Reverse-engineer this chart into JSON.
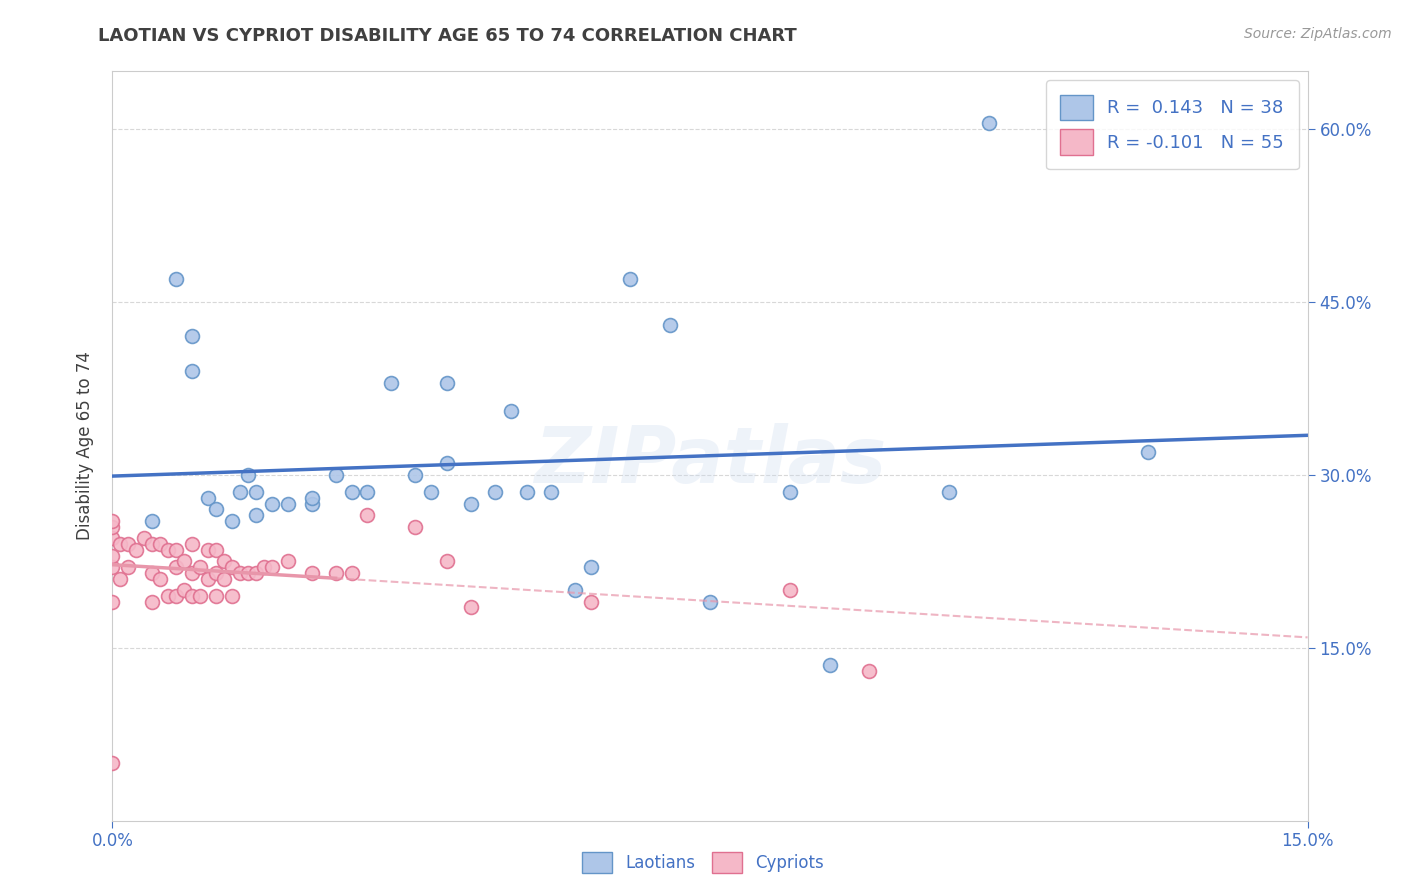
{
  "title": "LAOTIAN VS CYPRIOT DISABILITY AGE 65 TO 74 CORRELATION CHART",
  "source": "Source: ZipAtlas.com",
  "ylabel": "Disability Age 65 to 74",
  "xlim": [
    0.0,
    0.15
  ],
  "ylim": [
    0.0,
    0.65
  ],
  "xticks": [
    0.0,
    0.15
  ],
  "yticks": [
    0.15,
    0.3,
    0.45,
    0.6
  ],
  "laotian_color": "#aec6e8",
  "laotian_edge_color": "#6495c8",
  "cypriot_color": "#f5b8c8",
  "cypriot_edge_color": "#e07090",
  "laotian_line_color": "#4472c4",
  "cypriot_line_color": "#e896aa",
  "R_laotian": 0.143,
  "N_laotian": 38,
  "R_cypriot": -0.101,
  "N_cypriot": 55,
  "watermark": "ZIPatlas",
  "laotian_x": [
    0.005,
    0.008,
    0.01,
    0.01,
    0.012,
    0.013,
    0.015,
    0.016,
    0.017,
    0.018,
    0.018,
    0.02,
    0.022,
    0.025,
    0.025,
    0.028,
    0.03,
    0.032,
    0.035,
    0.038,
    0.04,
    0.042,
    0.042,
    0.045,
    0.048,
    0.05,
    0.052,
    0.055,
    0.058,
    0.06,
    0.065,
    0.07,
    0.075,
    0.085,
    0.09,
    0.105,
    0.11,
    0.13
  ],
  "laotian_y": [
    0.26,
    0.47,
    0.42,
    0.39,
    0.28,
    0.27,
    0.26,
    0.285,
    0.3,
    0.285,
    0.265,
    0.275,
    0.275,
    0.275,
    0.28,
    0.3,
    0.285,
    0.285,
    0.38,
    0.3,
    0.285,
    0.31,
    0.38,
    0.275,
    0.285,
    0.355,
    0.285,
    0.285,
    0.2,
    0.22,
    0.47,
    0.43,
    0.19,
    0.285,
    0.135,
    0.285,
    0.605,
    0.32
  ],
  "cypriot_x": [
    0.0,
    0.0,
    0.0,
    0.0,
    0.0,
    0.0,
    0.0,
    0.001,
    0.001,
    0.002,
    0.002,
    0.003,
    0.004,
    0.005,
    0.005,
    0.005,
    0.006,
    0.006,
    0.007,
    0.007,
    0.008,
    0.008,
    0.008,
    0.009,
    0.009,
    0.01,
    0.01,
    0.01,
    0.011,
    0.011,
    0.012,
    0.012,
    0.013,
    0.013,
    0.013,
    0.014,
    0.014,
    0.015,
    0.015,
    0.016,
    0.017,
    0.018,
    0.019,
    0.02,
    0.022,
    0.025,
    0.028,
    0.03,
    0.032,
    0.038,
    0.042,
    0.045,
    0.06,
    0.085,
    0.095
  ],
  "cypriot_y": [
    0.05,
    0.19,
    0.22,
    0.23,
    0.245,
    0.255,
    0.26,
    0.21,
    0.24,
    0.22,
    0.24,
    0.235,
    0.245,
    0.19,
    0.215,
    0.24,
    0.21,
    0.24,
    0.195,
    0.235,
    0.195,
    0.22,
    0.235,
    0.2,
    0.225,
    0.195,
    0.215,
    0.24,
    0.195,
    0.22,
    0.21,
    0.235,
    0.195,
    0.215,
    0.235,
    0.21,
    0.225,
    0.195,
    0.22,
    0.215,
    0.215,
    0.215,
    0.22,
    0.22,
    0.225,
    0.215,
    0.215,
    0.215,
    0.265,
    0.255,
    0.225,
    0.185,
    0.19,
    0.2,
    0.13
  ],
  "background_color": "#ffffff",
  "grid_color": "#d8d8d8",
  "title_color": "#404040",
  "axis_color": "#4472c4",
  "legend_text_color": "#4472c4"
}
